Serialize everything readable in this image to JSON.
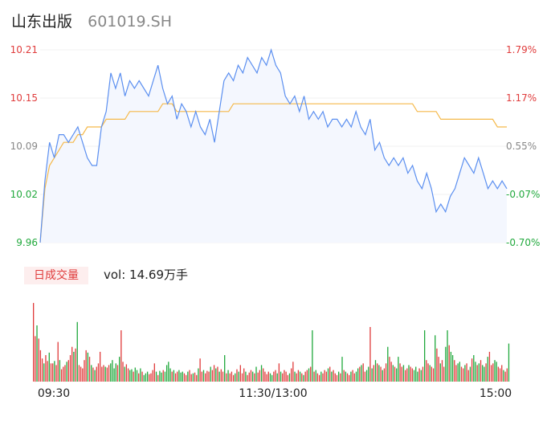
{
  "header": {
    "name": "山东出版",
    "code": "601019.SH"
  },
  "volume_panel": {
    "tab_label": "日成交量",
    "vol_label": "vol: 14.69万手"
  },
  "colors": {
    "price_line": "#5b8ff0",
    "avg_line": "#f5b94a",
    "up": "#e03c3c",
    "down": "#21a93d",
    "neutral": "#888888",
    "fill": "#f4f7fe"
  },
  "chart_data": [
    {
      "type": "line",
      "title": "",
      "y_ticks": [
        "10.21",
        "10.15",
        "10.09",
        "10.02",
        "9.96"
      ],
      "y_ticks_right": [
        "1.79%",
        "1.17%",
        "0.55%",
        "-0.07%",
        "-0.70%"
      ],
      "ylim": [
        9.96,
        10.21
      ],
      "x_ticks": [
        "09:30",
        "11:30/13:00",
        "15:00"
      ],
      "series": [
        {
          "name": "",
          "values": [
            9.96,
            10.04,
            10.09,
            10.07,
            10.1,
            10.1,
            10.09,
            10.1,
            10.11,
            10.09,
            10.07,
            10.06,
            10.06,
            10.11,
            10.13,
            10.18,
            10.16,
            10.18,
            10.15,
            10.17,
            10.16,
            10.17,
            10.16,
            10.15,
            10.17,
            10.19,
            10.16,
            10.14,
            10.15,
            10.12,
            10.14,
            10.13,
            10.11,
            10.13,
            10.11,
            10.1,
            10.12,
            10.09,
            10.13,
            10.17,
            10.18,
            10.17,
            10.19,
            10.18,
            10.2,
            10.19,
            10.18,
            10.2,
            10.19,
            10.21,
            10.19,
            10.18,
            10.15,
            10.14,
            10.15,
            10.13,
            10.15,
            10.12,
            10.13,
            10.12,
            10.13,
            10.11,
            10.12,
            10.12,
            10.11,
            10.12,
            10.11,
            10.13,
            10.11,
            10.1,
            10.12,
            10.08,
            10.09,
            10.07,
            10.06,
            10.07,
            10.06,
            10.07,
            10.05,
            10.06,
            10.04,
            10.03,
            10.05,
            10.03,
            10.0,
            10.01,
            10.0,
            10.02,
            10.03,
            10.05,
            10.07,
            10.06,
            10.05,
            10.07,
            10.05,
            10.03,
            10.04,
            10.03,
            10.04,
            10.03
          ]
        },
        {
          "name": "",
          "values": [
            9.96,
            10.03,
            10.06,
            10.07,
            10.08,
            10.09,
            10.09,
            10.09,
            10.1,
            10.1,
            10.11,
            10.11,
            10.11,
            10.11,
            10.12,
            10.12,
            10.12,
            10.12,
            10.12,
            10.13,
            10.13,
            10.13,
            10.13,
            10.13,
            10.13,
            10.13,
            10.14,
            10.14,
            10.14,
            10.13,
            10.13,
            10.13,
            10.13,
            10.13,
            10.13,
            10.13,
            10.13,
            10.13,
            10.13,
            10.13,
            10.13,
            10.14,
            10.14,
            10.14,
            10.14,
            10.14,
            10.14,
            10.14,
            10.14,
            10.14,
            10.14,
            10.14,
            10.14,
            10.14,
            10.14,
            10.14,
            10.14,
            10.14,
            10.14,
            10.14,
            10.14,
            10.14,
            10.14,
            10.14,
            10.14,
            10.14,
            10.14,
            10.14,
            10.14,
            10.14,
            10.14,
            10.14,
            10.14,
            10.14,
            10.14,
            10.14,
            10.14,
            10.14,
            10.14,
            10.14,
            10.13,
            10.13,
            10.13,
            10.13,
            10.13,
            10.12,
            10.12,
            10.12,
            10.12,
            10.12,
            10.12,
            10.12,
            10.12,
            10.12,
            10.12,
            10.12,
            10.12,
            10.11,
            10.11,
            10.11
          ]
        }
      ]
    },
    {
      "type": "bar",
      "title": "",
      "values": [
        95,
        55,
        68,
        52,
        38,
        28,
        22,
        32,
        25,
        35,
        22,
        22,
        25,
        20,
        48,
        26,
        15,
        18,
        20,
        24,
        26,
        32,
        42,
        36,
        40,
        72,
        20,
        18,
        16,
        26,
        38,
        35,
        30,
        20,
        17,
        14,
        18,
        22,
        36,
        18,
        20,
        18,
        17,
        20,
        22,
        26,
        16,
        22,
        20,
        30,
        62,
        24,
        18,
        21,
        16,
        14,
        15,
        12,
        17,
        14,
        10,
        16,
        12,
        8,
        10,
        12,
        9,
        10,
        14,
        22,
        12,
        8,
        13,
        11,
        14,
        12,
        20,
        24,
        16,
        12,
        14,
        10,
        12,
        14,
        11,
        12,
        10,
        8,
        12,
        14,
        9,
        10,
        11,
        8,
        16,
        28,
        12,
        14,
        10,
        13,
        12,
        18,
        14,
        20,
        16,
        18,
        12,
        15,
        12,
        32,
        10,
        14,
        10,
        12,
        8,
        10,
        15,
        12,
        20,
        10,
        16,
        12,
        8,
        11,
        14,
        12,
        10,
        18,
        11,
        14,
        20,
        16,
        12,
        9,
        12,
        10,
        8,
        12,
        14,
        10,
        22,
        12,
        10,
        14,
        12,
        8,
        10,
        16,
        24,
        12,
        10,
        14,
        12,
        10,
        8,
        12,
        14,
        16,
        18,
        62,
        12,
        14,
        10,
        8,
        12,
        10,
        14,
        12,
        16,
        18,
        12,
        14,
        10,
        8,
        12,
        10,
        30,
        14,
        12,
        10,
        8,
        12,
        14,
        10,
        12,
        16,
        18,
        20,
        22,
        12,
        14,
        18,
        66,
        16,
        20,
        26,
        22,
        20,
        18,
        14,
        16,
        22,
        42,
        30,
        24,
        20,
        18,
        16,
        30,
        22,
        18,
        20,
        14,
        16,
        20,
        18,
        16,
        14,
        18,
        12,
        16,
        14,
        18,
        62,
        26,
        22,
        20,
        18,
        16,
        56,
        40,
        30,
        22,
        26,
        18,
        42,
        62,
        44,
        36,
        32,
        26,
        20,
        22,
        24,
        18,
        16,
        20,
        22,
        14,
        18,
        28,
        32,
        24,
        20,
        22,
        26,
        20,
        18,
        22,
        30,
        36,
        20,
        22,
        26,
        24,
        18,
        16,
        20,
        14,
        12,
        16,
        46
      ],
      "colors": [
        "u",
        "u",
        "d",
        "u",
        "u",
        "u",
        "d",
        "u",
        "u",
        "d",
        "u",
        "u",
        "d",
        "u",
        "u",
        "d",
        "u",
        "u",
        "u",
        "d",
        "u",
        "u",
        "u",
        "d",
        "u",
        "d",
        "u",
        "u",
        "u",
        "u",
        "u",
        "d",
        "u",
        "d",
        "u",
        "d",
        "u",
        "u",
        "u",
        "u",
        "u",
        "d",
        "u",
        "u",
        "d",
        "d",
        "d",
        "d",
        "u",
        "d",
        "u",
        "u",
        "d",
        "u",
        "u",
        "d",
        "d",
        "u",
        "d",
        "d",
        "u",
        "d",
        "u",
        "d",
        "d",
        "d",
        "u",
        "u",
        "u",
        "u",
        "d",
        "u",
        "d",
        "d",
        "u",
        "d",
        "d",
        "d",
        "d",
        "u",
        "d",
        "u",
        "u",
        "d",
        "d",
        "d",
        "u",
        "u",
        "d",
        "u",
        "u",
        "d",
        "u",
        "u",
        "d",
        "u",
        "u",
        "d",
        "u",
        "u",
        "u",
        "d",
        "u",
        "u",
        "d",
        "u",
        "d",
        "u",
        "u",
        "d",
        "u",
        "d",
        "u",
        "u",
        "u",
        "d",
        "u",
        "d",
        "u",
        "u",
        "u",
        "d",
        "u",
        "u",
        "u",
        "d",
        "u",
        "d",
        "u",
        "u",
        "d",
        "u",
        "u",
        "u",
        "u",
        "d",
        "d",
        "u",
        "u",
        "d",
        "u",
        "d",
        "u",
        "u",
        "u",
        "u",
        "d",
        "u",
        "u",
        "d",
        "u",
        "u",
        "d",
        "u",
        "d",
        "u",
        "u",
        "d",
        "u",
        "d",
        "u",
        "d",
        "u",
        "u",
        "d",
        "u",
        "u",
        "u",
        "d",
        "u",
        "d",
        "u",
        "u",
        "u",
        "d",
        "u",
        "d",
        "u",
        "d",
        "u",
        "u",
        "d",
        "u",
        "u",
        "d",
        "d",
        "u",
        "d",
        "u",
        "u",
        "d",
        "d",
        "u",
        "d",
        "u",
        "d",
        "u",
        "d",
        "u",
        "d",
        "u",
        "u",
        "d",
        "u",
        "u",
        "d",
        "u",
        "d",
        "d",
        "u",
        "u",
        "d",
        "u",
        "u",
        "d",
        "u",
        "u",
        "d",
        "d",
        "d",
        "u",
        "d",
        "u",
        "d",
        "u",
        "u",
        "d",
        "u",
        "u",
        "d",
        "u",
        "u",
        "d",
        "u",
        "u",
        "d",
        "d",
        "u",
        "d",
        "d",
        "u",
        "u",
        "d",
        "d",
        "u",
        "u",
        "d",
        "u",
        "u",
        "d",
        "u",
        "d",
        "d",
        "u",
        "d",
        "u",
        "d",
        "d",
        "u",
        "d",
        "u",
        "u",
        "u",
        "d",
        "d",
        "u",
        "u",
        "u",
        "d",
        "u",
        "u",
        "d",
        "d",
        "u",
        "d",
        "u",
        "u",
        "d",
        "d",
        "u",
        "d",
        "u",
        "d",
        "u",
        "u",
        "u",
        "n"
      ],
      "ylim": [
        0,
        100
      ]
    }
  ]
}
